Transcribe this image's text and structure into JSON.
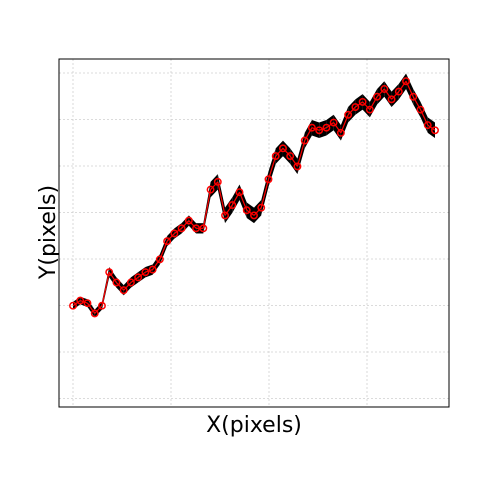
{
  "chart_data": {
    "type": "line",
    "xlabel": "X(pixels)",
    "ylabel": "Y(pixels)",
    "xlim": [
      0,
      100
    ],
    "ylim": [
      0,
      100
    ],
    "grid": true,
    "tick_labels_shown": false,
    "colors": {
      "black_series": "#000000",
      "red_series": "#ff0000"
    },
    "series": [
      {
        "style": "black-filled-band",
        "x": [
          0,
          2,
          4,
          6,
          8,
          10,
          12,
          14,
          16,
          18,
          20,
          22,
          24,
          26,
          28,
          30,
          32,
          34,
          36,
          38,
          40,
          42,
          44,
          46,
          48,
          50,
          52,
          54,
          56,
          58,
          60,
          62,
          64,
          66,
          68,
          70,
          72,
          74,
          76,
          78,
          80,
          82,
          84,
          86,
          88,
          90,
          92,
          94,
          96,
          98,
          100
        ],
        "y": [
          16,
          18,
          17,
          13,
          16,
          29,
          25,
          22,
          25,
          27,
          29,
          30,
          34,
          41,
          44,
          46,
          49,
          46,
          46,
          61,
          64,
          51,
          55,
          60,
          53,
          51,
          54,
          65,
          74,
          77,
          74,
          70,
          80,
          85,
          84,
          85,
          87,
          83,
          90,
          93,
          95,
          92,
          97,
          100,
          96,
          99,
          103,
          97,
          92,
          86,
          84
        ],
        "band": [
          1.5,
          1.5,
          1.5,
          1.5,
          1.5,
          2,
          2,
          2,
          2,
          2,
          2,
          2,
          2,
          2,
          2,
          2,
          2,
          2,
          2,
          3,
          3,
          3,
          3,
          3,
          3,
          3,
          3,
          3,
          3,
          3,
          3,
          3,
          3,
          3,
          3,
          3,
          3,
          3,
          3,
          3,
          3,
          3,
          3,
          3,
          3,
          3,
          3,
          3,
          3,
          3,
          3
        ]
      },
      {
        "style": "red-line-circles",
        "x": [
          0,
          2,
          4,
          6,
          8,
          10,
          12,
          14,
          16,
          18,
          20,
          22,
          24,
          26,
          28,
          30,
          32,
          34,
          36,
          38,
          40,
          42,
          44,
          46,
          48,
          50,
          52,
          54,
          56,
          58,
          60,
          62,
          64,
          66,
          68,
          70,
          72,
          74,
          76,
          78,
          80,
          82,
          84,
          86,
          88,
          90,
          92,
          94,
          96,
          98,
          100
        ],
        "y": [
          16,
          18,
          17,
          13,
          16,
          29,
          25,
          22,
          25,
          27,
          29,
          30,
          34,
          41,
          44,
          46,
          49,
          46,
          46,
          61,
          64,
          51,
          55,
          60,
          53,
          51,
          54,
          65,
          74,
          77,
          74,
          70,
          80,
          85,
          84,
          85,
          87,
          83,
          90,
          93,
          95,
          92,
          97,
          100,
          96,
          99,
          103,
          97,
          92,
          86,
          84
        ]
      }
    ]
  }
}
